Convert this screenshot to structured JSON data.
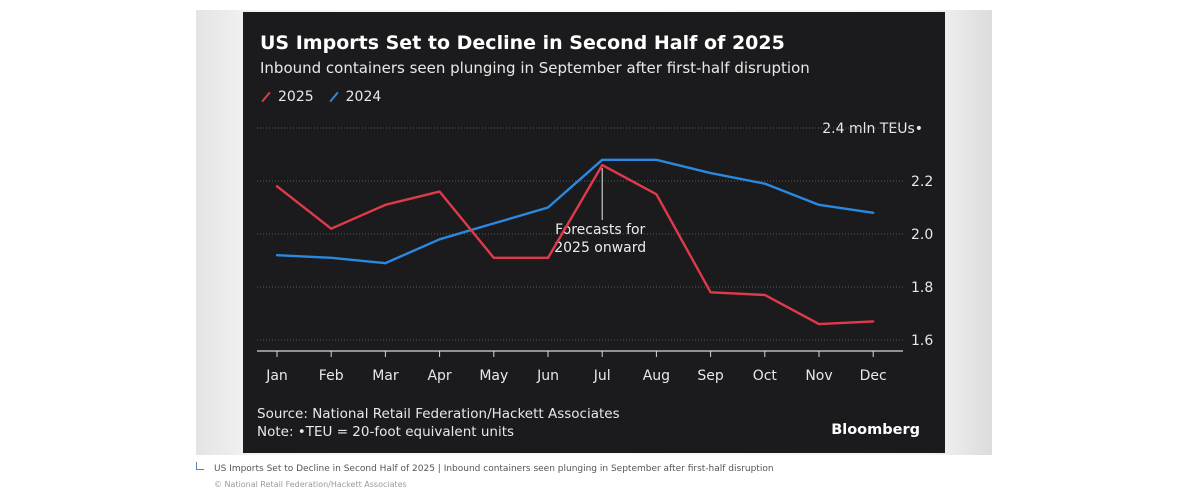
{
  "chart_data": {
    "type": "line",
    "title": "US Imports Set to Decline in Second Half of 2025",
    "subtitle": "Inbound containers seen plunging in September after first-half disruption",
    "unit_label": "2.4 mln TEUs•",
    "categories": [
      "Jan",
      "Feb",
      "Mar",
      "Apr",
      "May",
      "Jun",
      "Jul",
      "Aug",
      "Sep",
      "Oct",
      "Nov",
      "Dec"
    ],
    "series": [
      {
        "name": "2025",
        "color": "#e03a4a",
        "values": [
          2.18,
          2.02,
          2.11,
          2.16,
          1.91,
          1.91,
          2.26,
          2.15,
          1.78,
          1.77,
          1.66,
          1.67
        ]
      },
      {
        "name": "2024",
        "color": "#2b88e0",
        "values": [
          1.92,
          1.91,
          1.89,
          1.98,
          2.04,
          2.1,
          2.28,
          2.28,
          2.23,
          2.19,
          2.11,
          2.08
        ]
      }
    ],
    "ylim": [
      1.5,
      2.4
    ],
    "yticks": [
      {
        "value": 1.6,
        "label": "1.6"
      },
      {
        "value": 1.8,
        "label": "1.8"
      },
      {
        "value": 2.0,
        "label": "2.0"
      },
      {
        "value": 2.2,
        "label": "2.2"
      }
    ],
    "grid": true,
    "legend_position": "top-left",
    "annotation": {
      "category": "Jul",
      "lines": [
        "Forecasts for",
        "2025 onward"
      ]
    },
    "source": "Source: National Retail Federation/Hackett Associates",
    "note": "Note: •TEU = 20-foot equivalent units",
    "brand": "Bloomberg"
  },
  "caption": {
    "text": "US Imports Set to Decline in Second Half of 2025 | Inbound containers seen plunging in September after first-half disruption",
    "credit": "© National Retail Federation/Hackett Associates"
  }
}
